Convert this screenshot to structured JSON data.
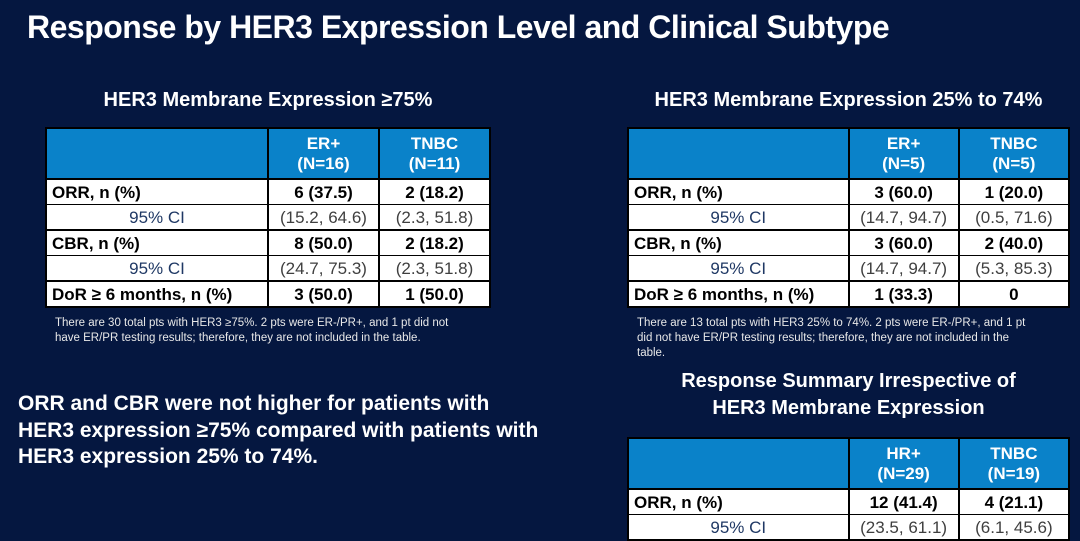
{
  "slide": {
    "title": "Response by HER3 Expression Level and Clinical Subtype",
    "statement": "ORR and CBR were not higher for patients with\nHER3 expression ≥75% compared with patients with\nHER3 expression 25% to 74%."
  },
  "colors": {
    "background": "#051740",
    "table_header_blue": "#0a82c9",
    "ci_label_blue": "#1f3864",
    "body_text_white": "#ffffff"
  },
  "tables": [
    {
      "title": "HER3 Membrane Expression ≥75%",
      "columns": [
        {
          "name": "ER+",
          "n": "(N=16)"
        },
        {
          "name": "TNBC",
          "n": "(N=11)"
        }
      ],
      "rows": [
        {
          "label": "ORR, n (%)",
          "values": [
            "6 (37.5)",
            "2 (18.2)"
          ]
        },
        {
          "label": "95% CI",
          "values": [
            "(15.2, 64.6)",
            "(2.3, 51.8)"
          ]
        },
        {
          "label": "CBR, n (%)",
          "values": [
            "8 (50.0)",
            "2 (18.2)"
          ]
        },
        {
          "label": "95% CI",
          "values": [
            "(24.7, 75.3)",
            "(2.3, 51.8)"
          ]
        },
        {
          "label": "DoR ≥ 6 months, n (%)",
          "values": [
            "3 (50.0)",
            "1 (50.0)"
          ]
        }
      ],
      "footnote": "There are 30 total pts with HER3 ≥75%. 2 pts were ER-/PR+, and 1 pt did not\nhave ER/PR testing results; therefore, they are not included in the table."
    },
    {
      "title": "HER3 Membrane Expression 25% to 74%",
      "columns": [
        {
          "name": "ER+",
          "n": "(N=5)"
        },
        {
          "name": "TNBC",
          "n": "(N=5)"
        }
      ],
      "rows": [
        {
          "label": "ORR, n (%)",
          "values": [
            "3 (60.0)",
            "1 (20.0)"
          ]
        },
        {
          "label": "95% CI",
          "values": [
            "(14.7, 94.7)",
            "(0.5, 71.6)"
          ]
        },
        {
          "label": "CBR, n (%)",
          "values": [
            "3 (60.0)",
            "2 (40.0)"
          ]
        },
        {
          "label": "95% CI",
          "values": [
            "(14.7, 94.7)",
            "(5.3, 85.3)"
          ]
        },
        {
          "label": "DoR ≥ 6 months, n (%)",
          "values": [
            "1 (33.3)",
            "0"
          ]
        }
      ],
      "footnote": "There are 13 total pts with HER3 25% to 74%. 2 pts were ER-/PR+, and 1 pt\ndid not have ER/PR testing results; therefore, they are not included in the\ntable."
    },
    {
      "title": "Response Summary Irrespective of\nHER3 Membrane Expression",
      "columns": [
        {
          "name": "HR+",
          "n": "(N=29)"
        },
        {
          "name": "TNBC",
          "n": "(N=19)"
        }
      ],
      "rows": [
        {
          "label": "ORR, n (%)",
          "values": [
            "12 (41.4)",
            "4 (21.1)"
          ]
        },
        {
          "label": "95% CI",
          "values": [
            "(23.5, 61.1)",
            "(6.1, 45.6)"
          ]
        }
      ]
    }
  ]
}
